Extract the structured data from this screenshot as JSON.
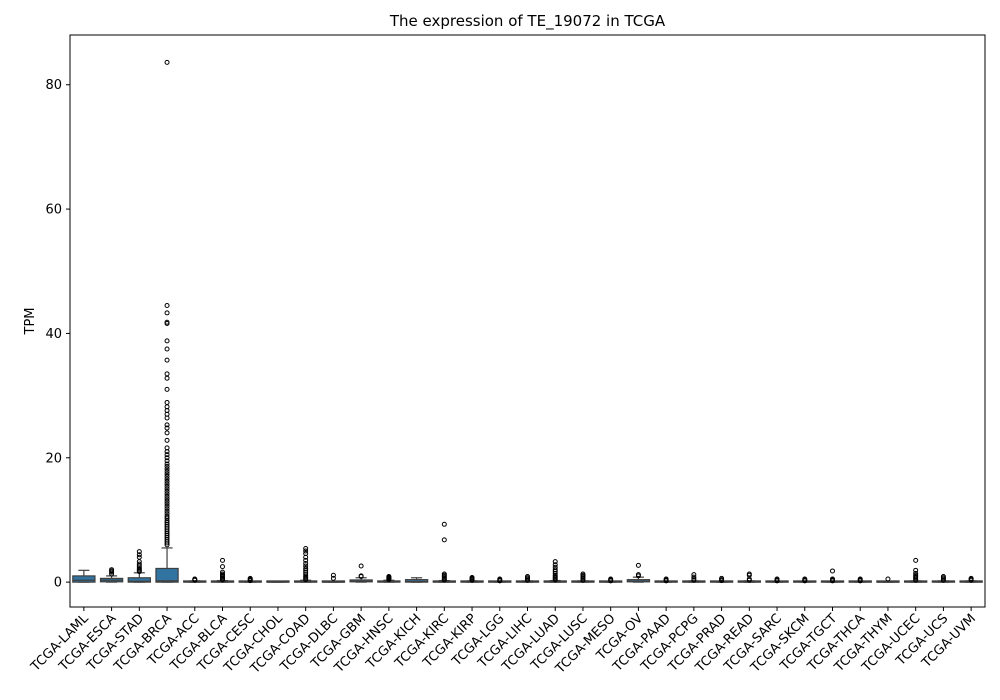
{
  "chart_data": {
    "type": "box",
    "title": "The expression of TE_19072 in TCGA",
    "xlabel": "",
    "ylabel": "TPM",
    "ylim": [
      -4,
      88
    ],
    "yticks": [
      0,
      20,
      40,
      60,
      80
    ],
    "grid": false,
    "box_color": "#3274a1",
    "categories": [
      "TCGA-LAML",
      "TCGA-ESCA",
      "TCGA-STAD",
      "TCGA-BRCA",
      "TCGA-ACC",
      "TCGA-BLCA",
      "TCGA-CESC",
      "TCGA-CHOL",
      "TCGA-COAD",
      "TCGA-DLBC",
      "TCGA-GBM",
      "TCGA-HNSC",
      "TCGA-KICH",
      "TCGA-KIRC",
      "TCGA-KIRP",
      "TCGA-LGG",
      "TCGA-LIHC",
      "TCGA-LUAD",
      "TCGA-LUSC",
      "TCGA-MESO",
      "TCGA-OV",
      "TCGA-PAAD",
      "TCGA-PCPG",
      "TCGA-PRAD",
      "TCGA-READ",
      "TCGA-SARC",
      "TCGA-SKCM",
      "TCGA-TGCT",
      "TCGA-THCA",
      "TCGA-THYM",
      "TCGA-UCEC",
      "TCGA-UCS",
      "TCGA-UVM"
    ],
    "boxes": [
      {
        "whislo": 0,
        "q1": 0.0,
        "med": 0.3,
        "q3": 1.0,
        "whishi": 1.9,
        "fliers": []
      },
      {
        "whislo": 0,
        "q1": 0.05,
        "med": 0.3,
        "q3": 0.6,
        "whishi": 1.0,
        "fliers": [
          1.3,
          1.6,
          1.8,
          2.0
        ]
      },
      {
        "whislo": 0,
        "q1": 0.0,
        "med": 0.15,
        "q3": 0.7,
        "whishi": 1.5,
        "fliers": [
          1.7,
          1.9,
          2.1,
          2.3,
          2.6,
          2.9,
          3.3,
          4.0,
          4.4,
          4.9
        ]
      },
      {
        "whislo": 0,
        "q1": 0.0,
        "med": 0.2,
        "q3": 2.2,
        "whishi": 5.5,
        "fliers": [
          6,
          6.3,
          6.6,
          6.9,
          7.2,
          7.5,
          7.8,
          8.1,
          8.4,
          8.7,
          9,
          9.3,
          9.6,
          9.9,
          10.3,
          10.6,
          11,
          11.4,
          11.8,
          12.2,
          12.6,
          13,
          13.4,
          13.8,
          14.2,
          14.6,
          15,
          15.4,
          15.8,
          16.2,
          16.6,
          17,
          17.4,
          17.8,
          18.2,
          18.6,
          19,
          19.5,
          20,
          20.5,
          21,
          21.6,
          22.8,
          24,
          24.8,
          25.3,
          26.4,
          27,
          27.6,
          28.2,
          28.9,
          31,
          32.8,
          33.5,
          35.7,
          37.5,
          38.8,
          41.6,
          41.8,
          43.3,
          44.5,
          83.6
        ]
      },
      {
        "whislo": 0,
        "q1": 0.0,
        "med": 0.02,
        "q3": 0.08,
        "whishi": 0.2,
        "fliers": [
          0.3,
          0.4,
          0.5
        ]
      },
      {
        "whislo": 0,
        "q1": 0.0,
        "med": 0.02,
        "q3": 0.1,
        "whishi": 0.25,
        "fliers": [
          0.35,
          0.5,
          0.7,
          0.9,
          1.1,
          1.3,
          1.6,
          2.5,
          3.5
        ]
      },
      {
        "whislo": 0,
        "q1": 0.0,
        "med": 0.01,
        "q3": 0.06,
        "whishi": 0.15,
        "fliers": [
          0.25,
          0.35,
          0.5,
          0.6
        ]
      },
      {
        "whislo": 0,
        "q1": 0.0,
        "med": 0.0,
        "q3": 0.02,
        "whishi": 0.05,
        "fliers": []
      },
      {
        "whislo": 0,
        "q1": 0.0,
        "med": 0.02,
        "q3": 0.12,
        "whishi": 0.3,
        "fliers": [
          0.4,
          0.6,
          0.8,
          1.0,
          1.3,
          1.6,
          1.9,
          2.2,
          2.6,
          3.0,
          3.5,
          4.0,
          4.6,
          5.0,
          5.4
        ]
      },
      {
        "whislo": 0,
        "q1": 0.0,
        "med": 0.0,
        "q3": 0.05,
        "whishi": 0.1,
        "fliers": [
          0.6,
          1.1
        ]
      },
      {
        "whislo": 0,
        "q1": 0.05,
        "med": 0.15,
        "q3": 0.35,
        "whishi": 0.7,
        "fliers": [
          0.9,
          1.0,
          2.6
        ]
      },
      {
        "whislo": 0,
        "q1": 0.0,
        "med": 0.03,
        "q3": 0.12,
        "whishi": 0.3,
        "fliers": [
          0.4,
          0.5,
          0.6,
          0.7,
          0.8,
          0.9
        ]
      },
      {
        "whislo": 0,
        "q1": 0.0,
        "med": 0.1,
        "q3": 0.4,
        "whishi": 0.7,
        "fliers": []
      },
      {
        "whislo": 0,
        "q1": 0.0,
        "med": 0.02,
        "q3": 0.1,
        "whishi": 0.25,
        "fliers": [
          0.35,
          0.5,
          0.7,
          0.9,
          1.1,
          1.3,
          6.8,
          9.3
        ]
      },
      {
        "whislo": 0,
        "q1": 0.0,
        "med": 0.02,
        "q3": 0.08,
        "whishi": 0.2,
        "fliers": [
          0.3,
          0.45,
          0.6,
          0.75
        ]
      },
      {
        "whislo": 0,
        "q1": 0.0,
        "med": 0.01,
        "q3": 0.05,
        "whishi": 0.12,
        "fliers": [
          0.2,
          0.35,
          0.5
        ]
      },
      {
        "whislo": 0,
        "q1": 0.0,
        "med": 0.02,
        "q3": 0.08,
        "whishi": 0.2,
        "fliers": [
          0.3,
          0.5,
          0.7,
          0.9
        ]
      },
      {
        "whislo": 0,
        "q1": 0.0,
        "med": 0.02,
        "q3": 0.1,
        "whishi": 0.25,
        "fliers": [
          0.35,
          0.5,
          0.7,
          0.9,
          1.1,
          1.4,
          1.7,
          2.0,
          2.4,
          2.8,
          3.3
        ]
      },
      {
        "whislo": 0,
        "q1": 0.0,
        "med": 0.02,
        "q3": 0.08,
        "whishi": 0.2,
        "fliers": [
          0.3,
          0.5,
          0.7,
          0.9,
          1.1,
          1.3
        ]
      },
      {
        "whislo": 0,
        "q1": 0.0,
        "med": 0.01,
        "q3": 0.05,
        "whishi": 0.12,
        "fliers": [
          0.2,
          0.35,
          0.5
        ]
      },
      {
        "whislo": 0,
        "q1": 0.05,
        "med": 0.15,
        "q3": 0.4,
        "whishi": 0.8,
        "fliers": [
          1.0,
          1.2,
          2.7
        ]
      },
      {
        "whislo": 0,
        "q1": 0.0,
        "med": 0.01,
        "q3": 0.05,
        "whishi": 0.12,
        "fliers": [
          0.2,
          0.35,
          0.5
        ]
      },
      {
        "whislo": 0,
        "q1": 0.0,
        "med": 0.02,
        "q3": 0.08,
        "whishi": 0.2,
        "fliers": [
          0.3,
          0.5,
          0.8,
          1.2
        ]
      },
      {
        "whislo": 0,
        "q1": 0.0,
        "med": 0.01,
        "q3": 0.06,
        "whishi": 0.15,
        "fliers": [
          0.25,
          0.4,
          0.6
        ]
      },
      {
        "whislo": 0,
        "q1": 0.0,
        "med": 0.02,
        "q3": 0.08,
        "whishi": 0.2,
        "fliers": [
          0.3,
          0.5,
          1.1,
          1.3
        ]
      },
      {
        "whislo": 0,
        "q1": 0.0,
        "med": 0.01,
        "q3": 0.05,
        "whishi": 0.12,
        "fliers": [
          0.2,
          0.35,
          0.5
        ]
      },
      {
        "whislo": 0,
        "q1": 0.0,
        "med": 0.01,
        "q3": 0.05,
        "whishi": 0.12,
        "fliers": [
          0.2,
          0.35,
          0.5
        ]
      },
      {
        "whislo": 0,
        "q1": 0.0,
        "med": 0.01,
        "q3": 0.05,
        "whishi": 0.12,
        "fliers": [
          0.2,
          0.35,
          0.5,
          1.8
        ]
      },
      {
        "whislo": 0,
        "q1": 0.0,
        "med": 0.01,
        "q3": 0.05,
        "whishi": 0.12,
        "fliers": [
          0.2,
          0.35,
          0.5
        ]
      },
      {
        "whislo": 0,
        "q1": 0.0,
        "med": 0.0,
        "q3": 0.03,
        "whishi": 0.08,
        "fliers": [
          0.5
        ]
      },
      {
        "whislo": 0,
        "q1": 0.0,
        "med": 0.02,
        "q3": 0.08,
        "whishi": 0.2,
        "fliers": [
          0.3,
          0.5,
          0.7,
          0.9,
          1.1,
          1.4,
          1.9,
          3.5
        ]
      },
      {
        "whislo": 0,
        "q1": 0.0,
        "med": 0.02,
        "q3": 0.08,
        "whishi": 0.2,
        "fliers": [
          0.3,
          0.5,
          0.7,
          0.9
        ]
      },
      {
        "whislo": 0,
        "q1": 0.0,
        "med": 0.02,
        "q3": 0.08,
        "whishi": 0.2,
        "fliers": [
          0.3,
          0.45,
          0.6
        ]
      }
    ]
  }
}
